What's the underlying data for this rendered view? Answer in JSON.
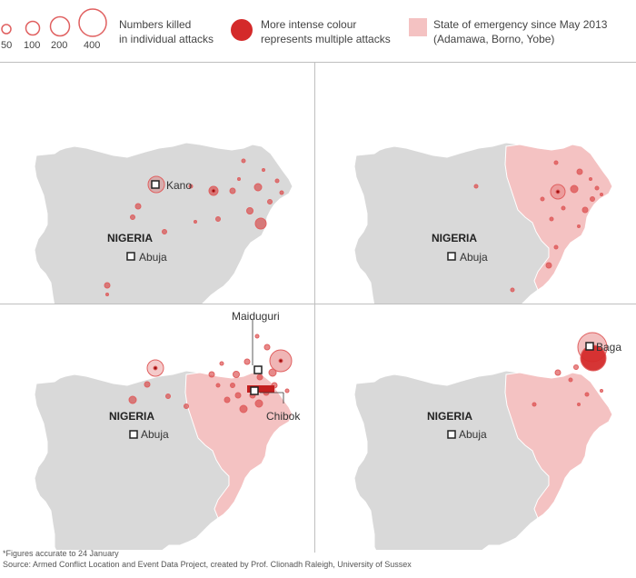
{
  "legend": {
    "sizes": [
      "50",
      "100",
      "200",
      "400"
    ],
    "size_caption": [
      "Numbers killed",
      "in individual attacks"
    ],
    "intensity_caption": [
      "More intense colour",
      "represents multiple attacks"
    ],
    "emergency_caption": [
      "State of emergency since May 2013",
      "(Adamawa, Borno, Yobe)"
    ],
    "colors": {
      "ring": "#e06060",
      "dot": "#d42a2a",
      "emergency": "#f4c2c2",
      "land": "#d9d9d9"
    }
  },
  "panels": [
    {
      "country": "NIGERIA",
      "cities": [
        "Kano",
        "Abuja"
      ],
      "emergency": false
    },
    {
      "country": "NIGERIA",
      "cities": [
        "Abuja"
      ],
      "emergency": true
    },
    {
      "country": "NIGERIA",
      "cities": [
        "Maiduguri",
        "Chibok",
        "Abuja"
      ],
      "emergency": true
    },
    {
      "country": "NIGERIA",
      "cities": [
        "Baga",
        "Abuja"
      ],
      "emergency": true
    }
  ],
  "footer": {
    "note": "*Figures accurate to 24 January",
    "source": "Source: Armed Conflict Location and Event Data Project, created by Prof. Clionadh Raleigh, University of Sussex"
  }
}
